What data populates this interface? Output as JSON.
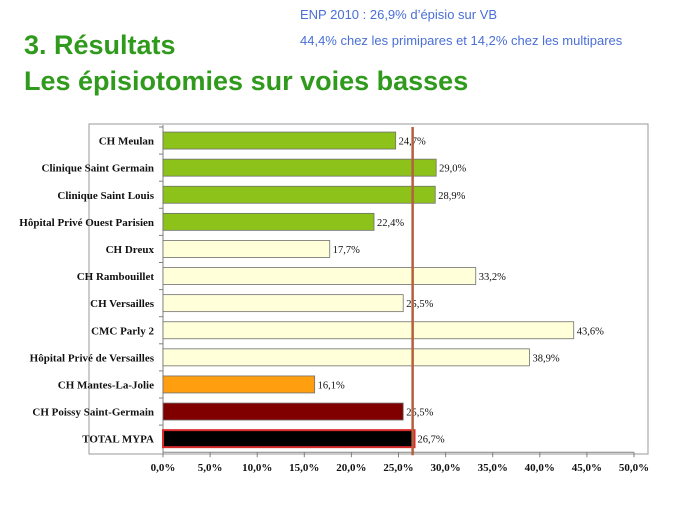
{
  "header": {
    "note_line1": "ENP 2010 : 26,9% d’épisio sur VB",
    "note_line2": "44,4% chez les primipares et 14,2% chez les multipares",
    "title_line1": "3. Résultats",
    "title_line2": "Les épisiotomies sur voies basses"
  },
  "chart_data": {
    "type": "bar",
    "orientation": "horizontal",
    "categories": [
      "CH Meulan",
      "Clinique Saint Germain",
      "Clinique Saint Louis",
      "Hôpital Privé Ouest Parisien",
      "CH Dreux",
      "CH Rambouillet",
      "CH Versailles",
      "CMC Parly 2",
      "Hôpital Privé de Versailles",
      "CH Mantes-La-Jolie",
      "CH Poissy Saint-Germain",
      "TOTAL MYPA"
    ],
    "values": [
      24.7,
      29.0,
      28.9,
      22.4,
      17.7,
      33.2,
      25.5,
      43.6,
      38.9,
      16.1,
      25.5,
      26.7
    ],
    "data_labels": [
      "24,7%",
      "29,0%",
      "28,9%",
      "22,4%",
      "17,7%",
      "33,2%",
      "25,5%",
      "43,6%",
      "38,9%",
      "16,1%",
      "25,5%",
      "26,7%"
    ],
    "bar_colors": [
      "#8cc21a",
      "#8cc21a",
      "#8cc21a",
      "#8cc21a",
      "#ffffd9",
      "#ffffd9",
      "#ffffd9",
      "#ffffd9",
      "#ffffd9",
      "#ff9f10",
      "#800000",
      "#000000"
    ],
    "xlim": [
      0,
      50
    ],
    "xticks": [
      0,
      5,
      10,
      15,
      20,
      25,
      30,
      35,
      40,
      45,
      50
    ],
    "xtick_labels": [
      "0,0%",
      "5,0%",
      "10,0%",
      "15,0%",
      "20,0%",
      "25,0%",
      "30,0%",
      "35,0%",
      "40,0%",
      "45,0%",
      "50,0%"
    ],
    "reference_line": {
      "value": 26.5,
      "color": "#b5603e"
    },
    "grid": false,
    "legend": "none",
    "title": "",
    "xlabel": "",
    "ylabel": ""
  }
}
